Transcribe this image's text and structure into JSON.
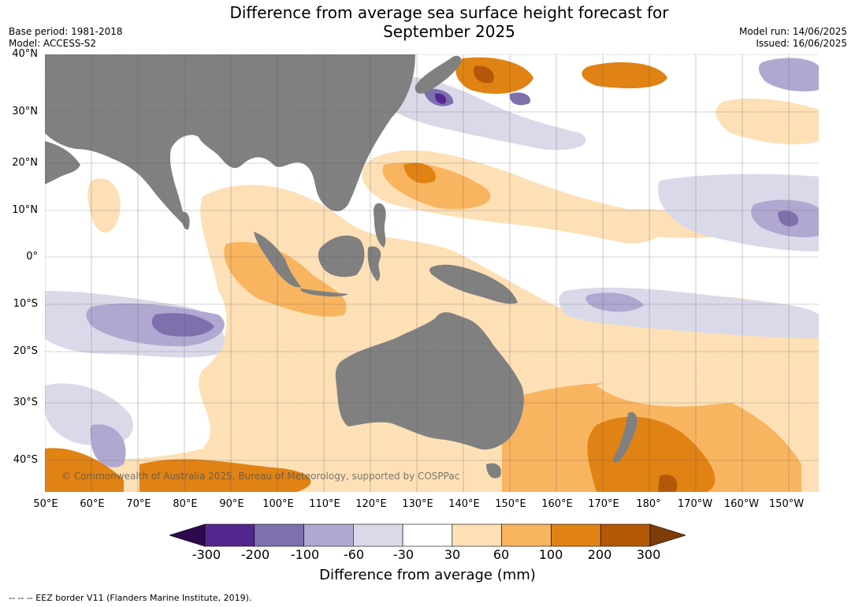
{
  "title_line1": "Difference from average sea surface height forecast for",
  "title_line2": "September 2025",
  "meta": {
    "base_period": "Base period: 1981-2018",
    "model": "Model: ACCESS-S2",
    "model_run": "Model run: 14/06/2025",
    "issued": "Issued: 16/06/2025"
  },
  "lat_labels": [
    "40°N",
    "30°N",
    "20°N",
    "10°N",
    "0°",
    "10°S",
    "20°S",
    "30°S",
    "40°S"
  ],
  "lon_labels": [
    "50°E",
    "60°E",
    "70°E",
    "80°E",
    "90°E",
    "100°E",
    "110°E",
    "120°E",
    "130°E",
    "140°E",
    "150°E",
    "160°E",
    "170°E",
    "180°",
    "170°W",
    "160°W",
    "150°W"
  ],
  "credit": "© Commonwealth of Australia 2025, Bureau of Meteorology, supported by COSPPac",
  "colorbar": {
    "ticks": [
      "-300",
      "-200",
      "-100",
      "-60",
      "-30",
      "30",
      "60",
      "100",
      "200",
      "300"
    ],
    "colors": [
      "#2d0a4e",
      "#54278f",
      "#7e70ad",
      "#b0a8d0",
      "#d9d9ea",
      "#ffffff",
      "#fde0b6",
      "#f9b45f",
      "#e08214",
      "#b35806",
      "#7f3b08"
    ],
    "label": "Difference from average (mm)"
  },
  "footer": "--  --  -- EEZ border V11 (Flanders Marine Institute, 2019)."
}
